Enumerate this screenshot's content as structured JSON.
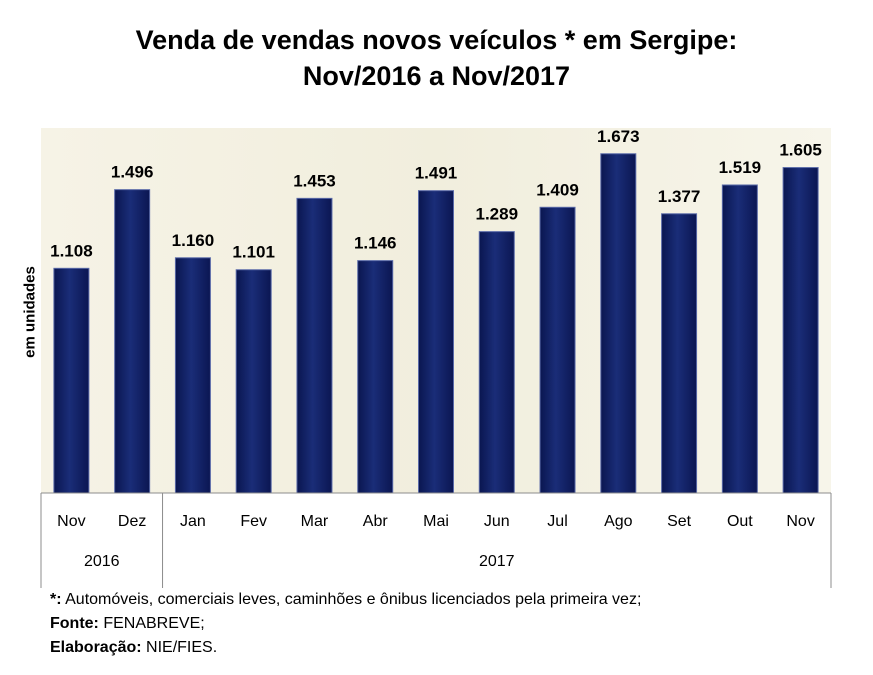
{
  "chart_data": {
    "type": "bar",
    "title_line1": "Venda de vendas novos veículos * em Sergipe:",
    "title_line2": "Nov/2016 a Nov/2017",
    "ylabel": "em unidades",
    "categories": [
      "Nov",
      "Dez",
      "Jan",
      "Fev",
      "Mar",
      "Abr",
      "Mai",
      "Jun",
      "Jul",
      "Ago",
      "Set",
      "Out",
      "Nov"
    ],
    "values": [
      1108,
      1496,
      1160,
      1101,
      1453,
      1146,
      1491,
      1289,
      1409,
      1673,
      1377,
      1519,
      1605
    ],
    "value_labels": [
      "1.108",
      "1.496",
      "1.160",
      "1.101",
      "1.453",
      "1.146",
      "1.491",
      "1.289",
      "1.409",
      "1.673",
      "1.377",
      "1.519",
      "1.605"
    ],
    "year_groups": [
      {
        "label": "2016",
        "count": 2
      },
      {
        "label": "2017",
        "count": 11
      }
    ],
    "ylim": [
      0,
      1800
    ],
    "grid": false,
    "bar_color": "#0f1f5e",
    "plot_background": "#f3f0e2"
  },
  "notes": {
    "note1_key": "*:",
    "note1_text": " Automóveis, comerciais leves, caminhões e ônibus licenciados pela primeira vez;",
    "note2_key": "Fonte:",
    "note2_text": " FENABREVE;",
    "note3_key": "Elaboração:",
    "note3_text": " NIE/FIES."
  }
}
